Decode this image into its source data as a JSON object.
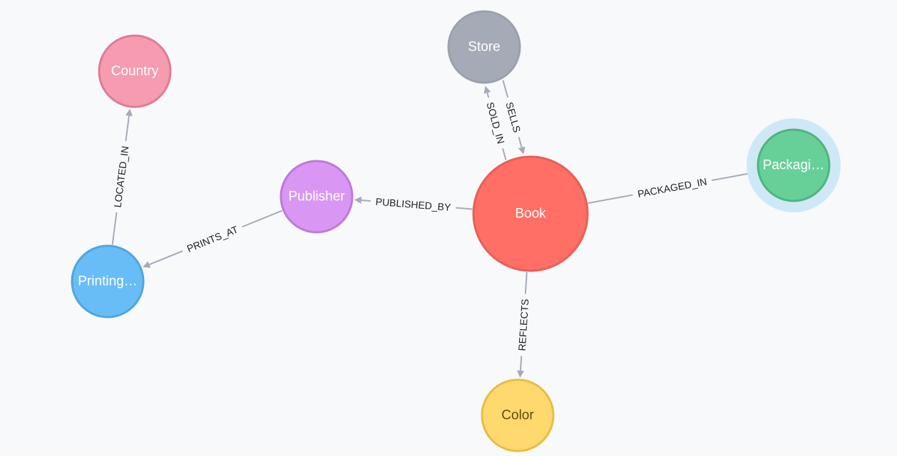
{
  "graph": {
    "nodes": [
      {
        "id": "store",
        "label": "Store",
        "fill": "#a5abb6",
        "stroke": "#9aa1ac",
        "text_color": "#ffffff",
        "selected": false
      },
      {
        "id": "country",
        "label": "Country",
        "fill": "#f79bb0",
        "stroke": "#dc7d93",
        "text_color": "#ffffff",
        "selected": false
      },
      {
        "id": "publisher",
        "label": "Publisher",
        "fill": "#d996f2",
        "stroke": "#bf79d9",
        "text_color": "#ffffff",
        "selected": false
      },
      {
        "id": "book",
        "label": "Book",
        "fill": "#ff6f66",
        "stroke": "#e85f56",
        "text_color": "#ffffff",
        "selected": false
      },
      {
        "id": "packaging",
        "label": "Packagi…",
        "fill": "#67d098",
        "stroke": "#4fb47f",
        "text_color": "#ffffff",
        "selected": true,
        "halo_color": "#cfe8f7"
      },
      {
        "id": "printing",
        "label": "Printing…",
        "fill": "#68bdf6",
        "stroke": "#4fa6de",
        "text_color": "#ffffff",
        "selected": false
      },
      {
        "id": "color",
        "label": "Color",
        "fill": "#ffd86e",
        "stroke": "#e9bd3f",
        "text_color": "#604a0e",
        "selected": false
      }
    ],
    "relationships": [
      {
        "id": "sells",
        "label": "SELLS",
        "from": "store",
        "to": "book"
      },
      {
        "id": "sold-in",
        "label": "SOLD_IN",
        "from": "book",
        "to": "store"
      },
      {
        "id": "published-by",
        "label": "PUBLISHED_BY",
        "from": "book",
        "to": "publisher"
      },
      {
        "id": "packaged-in",
        "label": "PACKAGED_IN",
        "from": "book",
        "to": "packaging"
      },
      {
        "id": "reflects",
        "label": "REFLECTS",
        "from": "book",
        "to": "color"
      },
      {
        "id": "prints-at",
        "label": "PRINTS_AT",
        "from": "publisher",
        "to": "printing"
      },
      {
        "id": "located-in",
        "label": "LOCATED_IN",
        "from": "printing",
        "to": "country"
      }
    ]
  },
  "colors": {
    "background": "#f8f9fb",
    "edge": "#a5abb6",
    "edge_label": "#1f1f1f"
  }
}
